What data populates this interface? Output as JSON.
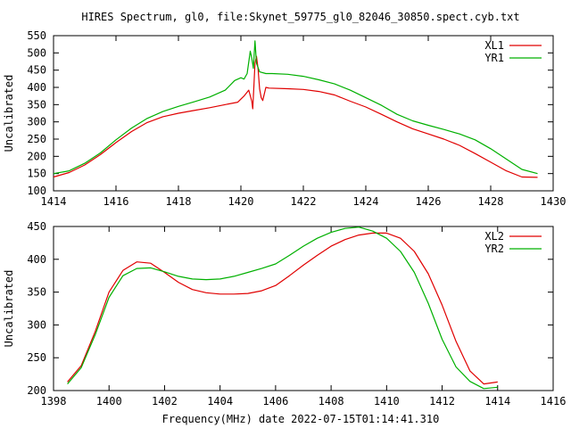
{
  "title": "HIRES Spectrum, gl0, file:Skynet_59775_gl0_82046_30850.spect.cyb.txt",
  "xlabel": "Frequency(MHz) date 2022-07-15T01:14:41.310",
  "colors": {
    "red": "#e00000",
    "green": "#00b000",
    "axis": "#000000"
  },
  "chart_data": [
    {
      "type": "line",
      "ylabel": "Uncalibrated",
      "xlim": [
        1414,
        1430
      ],
      "ylim": [
        100,
        550
      ],
      "xticks": [
        1414,
        1416,
        1418,
        1420,
        1422,
        1424,
        1426,
        1428,
        1430
      ],
      "yticks": [
        100,
        150,
        200,
        250,
        300,
        350,
        400,
        450,
        500,
        550
      ],
      "legend_position": "top-right",
      "grid": false,
      "series": [
        {
          "name": "XL1",
          "color": "#e00000",
          "points": [
            [
              1414.0,
              140
            ],
            [
              1414.5,
              153
            ],
            [
              1415.0,
              175
            ],
            [
              1415.5,
              205
            ],
            [
              1416.0,
              240
            ],
            [
              1416.5,
              272
            ],
            [
              1417.0,
              298
            ],
            [
              1417.5,
              315
            ],
            [
              1418.0,
              325
            ],
            [
              1418.5,
              333
            ],
            [
              1419.0,
              341
            ],
            [
              1419.5,
              350
            ],
            [
              1419.9,
              357
            ],
            [
              1420.1,
              375
            ],
            [
              1420.25,
              392
            ],
            [
              1420.35,
              360
            ],
            [
              1420.38,
              338
            ],
            [
              1420.42,
              410
            ],
            [
              1420.45,
              470
            ],
            [
              1420.5,
              490
            ],
            [
              1420.55,
              455
            ],
            [
              1420.6,
              395
            ],
            [
              1420.65,
              370
            ],
            [
              1420.7,
              362
            ],
            [
              1420.8,
              400
            ],
            [
              1420.9,
              398
            ],
            [
              1421.5,
              396
            ],
            [
              1422.0,
              394
            ],
            [
              1422.5,
              388
            ],
            [
              1423.0,
              378
            ],
            [
              1423.5,
              360
            ],
            [
              1424.0,
              343
            ],
            [
              1424.5,
              322
            ],
            [
              1425.0,
              300
            ],
            [
              1425.5,
              280
            ],
            [
              1426.0,
              265
            ],
            [
              1426.5,
              250
            ],
            [
              1427.0,
              232
            ],
            [
              1427.5,
              208
            ],
            [
              1428.0,
              183
            ],
            [
              1428.5,
              158
            ],
            [
              1429.0,
              140
            ],
            [
              1429.5,
              139
            ]
          ]
        },
        {
          "name": "YR1",
          "color": "#00b000",
          "points": [
            [
              1414.0,
              150
            ],
            [
              1414.5,
              158
            ],
            [
              1415.0,
              180
            ],
            [
              1415.5,
              210
            ],
            [
              1416.0,
              248
            ],
            [
              1416.5,
              282
            ],
            [
              1417.0,
              310
            ],
            [
              1417.5,
              330
            ],
            [
              1418.0,
              345
            ],
            [
              1418.5,
              358
            ],
            [
              1419.0,
              372
            ],
            [
              1419.5,
              392
            ],
            [
              1419.8,
              420
            ],
            [
              1420.0,
              428
            ],
            [
              1420.1,
              424
            ],
            [
              1420.2,
              440
            ],
            [
              1420.3,
              505
            ],
            [
              1420.35,
              485
            ],
            [
              1420.4,
              455
            ],
            [
              1420.45,
              535
            ],
            [
              1420.5,
              470
            ],
            [
              1420.6,
              445
            ],
            [
              1420.8,
              440
            ],
            [
              1421.0,
              440
            ],
            [
              1421.5,
              438
            ],
            [
              1422.0,
              432
            ],
            [
              1422.5,
              422
            ],
            [
              1423.0,
              410
            ],
            [
              1423.5,
              392
            ],
            [
              1424.0,
              370
            ],
            [
              1424.5,
              348
            ],
            [
              1425.0,
              322
            ],
            [
              1425.5,
              303
            ],
            [
              1426.0,
              290
            ],
            [
              1426.5,
              278
            ],
            [
              1427.0,
              265
            ],
            [
              1427.5,
              248
            ],
            [
              1428.0,
              222
            ],
            [
              1428.5,
              192
            ],
            [
              1429.0,
              162
            ],
            [
              1429.5,
              150
            ]
          ]
        }
      ]
    },
    {
      "type": "line",
      "ylabel": "Uncalibrated",
      "xlim": [
        1398,
        1416
      ],
      "ylim": [
        200,
        450
      ],
      "xticks": [
        1398,
        1400,
        1402,
        1404,
        1406,
        1408,
        1410,
        1412,
        1414,
        1416
      ],
      "yticks": [
        200,
        250,
        300,
        350,
        400,
        450
      ],
      "legend_position": "top-right",
      "grid": false,
      "series": [
        {
          "name": "XL2",
          "color": "#e00000",
          "points": [
            [
              1398.5,
              213
            ],
            [
              1399.0,
              238
            ],
            [
              1399.5,
              290
            ],
            [
              1400.0,
              350
            ],
            [
              1400.5,
              383
            ],
            [
              1401.0,
              396
            ],
            [
              1401.5,
              394
            ],
            [
              1402.0,
              380
            ],
            [
              1402.5,
              365
            ],
            [
              1403.0,
              354
            ],
            [
              1403.5,
              349
            ],
            [
              1404.0,
              347
            ],
            [
              1404.5,
              347
            ],
            [
              1405.0,
              348
            ],
            [
              1405.5,
              352
            ],
            [
              1406.0,
              360
            ],
            [
              1406.5,
              375
            ],
            [
              1407.0,
              391
            ],
            [
              1407.5,
              406
            ],
            [
              1408.0,
              420
            ],
            [
              1408.5,
              430
            ],
            [
              1409.0,
              437
            ],
            [
              1409.5,
              440
            ],
            [
              1410.0,
              440
            ],
            [
              1410.5,
              432
            ],
            [
              1411.0,
              412
            ],
            [
              1411.5,
              378
            ],
            [
              1412.0,
              330
            ],
            [
              1412.5,
              275
            ],
            [
              1413.0,
              230
            ],
            [
              1413.5,
              210
            ],
            [
              1414.0,
              213
            ]
          ]
        },
        {
          "name": "YR2",
          "color": "#00b000",
          "points": [
            [
              1398.5,
              210
            ],
            [
              1399.0,
              235
            ],
            [
              1399.5,
              285
            ],
            [
              1400.0,
              342
            ],
            [
              1400.5,
              375
            ],
            [
              1401.0,
              386
            ],
            [
              1401.5,
              387
            ],
            [
              1402.0,
              381
            ],
            [
              1402.5,
              374
            ],
            [
              1403.0,
              370
            ],
            [
              1403.5,
              369
            ],
            [
              1404.0,
              370
            ],
            [
              1404.5,
              374
            ],
            [
              1405.0,
              380
            ],
            [
              1405.5,
              386
            ],
            [
              1406.0,
              393
            ],
            [
              1406.5,
              406
            ],
            [
              1407.0,
              420
            ],
            [
              1407.5,
              432
            ],
            [
              1408.0,
              441
            ],
            [
              1408.5,
              447
            ],
            [
              1409.0,
              449
            ],
            [
              1409.5,
              443
            ],
            [
              1410.0,
              432
            ],
            [
              1410.5,
              412
            ],
            [
              1411.0,
              380
            ],
            [
              1411.5,
              333
            ],
            [
              1412.0,
              278
            ],
            [
              1412.5,
              236
            ],
            [
              1413.0,
              214
            ],
            [
              1413.5,
              203
            ],
            [
              1414.0,
              205
            ]
          ]
        }
      ]
    }
  ]
}
